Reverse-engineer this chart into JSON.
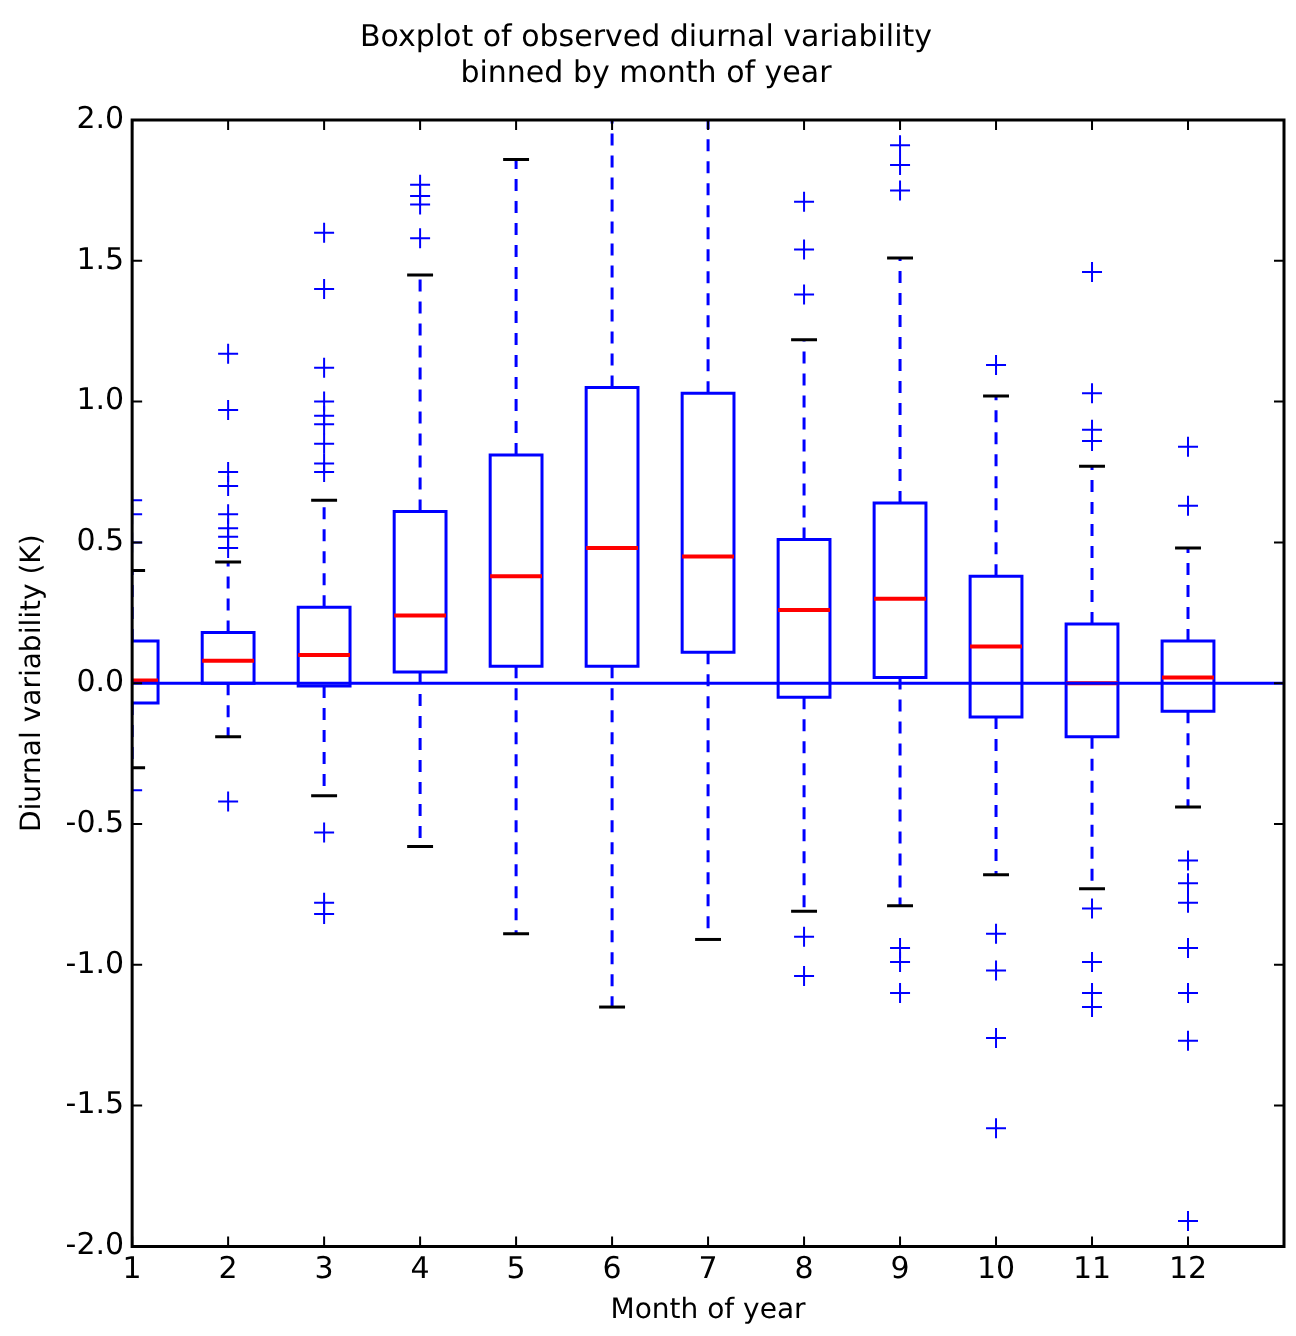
{
  "chart_data": {
    "type": "box",
    "title": "Boxplot of observed diurnal variability binned by month of year",
    "xlabel": "Month of year",
    "ylabel": "Diurnal variability (K)",
    "x": [
      1,
      2,
      3,
      4,
      5,
      6,
      7,
      8,
      9,
      10,
      11,
      12
    ],
    "xlim": [
      1,
      13
    ],
    "xticks": [
      1,
      2,
      3,
      4,
      5,
      6,
      7,
      8,
      9,
      10,
      11,
      12
    ],
    "ylim": [
      -2,
      2
    ],
    "yticks": [
      {
        "value": -2,
        "label": "-2.0"
      },
      {
        "value": -1.5,
        "label": "-1.5"
      },
      {
        "value": -1,
        "label": "-1.0"
      },
      {
        "value": -0.5,
        "label": "-0.5"
      },
      {
        "value": 0,
        "label": "0.0"
      },
      {
        "value": 0.5,
        "label": "0.5"
      },
      {
        "value": 1,
        "label": "1.0"
      },
      {
        "value": 1.5,
        "label": "1.5"
      },
      {
        "value": 2,
        "label": "2.0"
      }
    ],
    "grid": false,
    "legend": false,
    "marker": "cross",
    "ref_lines": [
      {
        "axis": "y",
        "value": 0,
        "color": "#0000ff"
      }
    ],
    "series": [
      {
        "color": "#0000ff",
        "boxes": [
          {
            "low": -0.3,
            "q1": -0.07,
            "median": 0.01,
            "q3": 0.15,
            "high": 0.4,
            "outliers": [
              0.5,
              0.6,
              0.65,
              -0.38
            ]
          },
          {
            "low": -0.19,
            "q1": 0.0,
            "median": 0.08,
            "q3": 0.18,
            "high": 0.43,
            "outliers": [
              0.48,
              0.52,
              0.55,
              0.6,
              0.7,
              0.75,
              0.97,
              1.17,
              -0.42
            ]
          },
          {
            "low": -0.4,
            "q1": -0.01,
            "median": 0.1,
            "q3": 0.27,
            "high": 0.65,
            "outliers": [
              0.75,
              0.78,
              0.85,
              0.92,
              0.95,
              1.0,
              1.12,
              1.4,
              1.6,
              -0.53,
              -0.78,
              -0.82
            ]
          },
          {
            "low": -0.58,
            "q1": 0.04,
            "median": 0.24,
            "q3": 0.61,
            "high": 1.45,
            "outliers": [
              1.58,
              1.7,
              1.73,
              1.77
            ]
          },
          {
            "low": -0.89,
            "q1": 0.06,
            "median": 0.38,
            "q3": 0.81,
            "high": 1.86
          },
          {
            "low": -1.15,
            "q1": 0.06,
            "median": 0.48,
            "q3": 1.05,
            "high": null
          },
          {
            "low": -0.91,
            "q1": 0.11,
            "median": 0.45,
            "q3": 1.03,
            "high": null
          },
          {
            "low": -0.81,
            "q1": -0.05,
            "median": 0.26,
            "q3": 0.51,
            "high": 1.22,
            "outliers": [
              1.38,
              1.54,
              1.71,
              -0.9,
              -1.04
            ]
          },
          {
            "low": -0.79,
            "q1": 0.02,
            "median": 0.3,
            "q3": 0.64,
            "high": 1.51,
            "outliers": [
              1.75,
              1.84,
              1.91,
              -0.94,
              -0.99,
              -1.1
            ]
          },
          {
            "low": -0.68,
            "q1": -0.12,
            "median": 0.13,
            "q3": 0.38,
            "high": 1.02,
            "outliers": [
              1.13,
              -0.89,
              -1.02,
              -1.26,
              -1.58
            ]
          },
          {
            "low": -0.73,
            "q1": -0.19,
            "median": 0.0,
            "q3": 0.21,
            "high": 0.77,
            "outliers": [
              0.86,
              0.9,
              1.03,
              1.46,
              -0.8,
              -0.99,
              -1.1,
              -1.15
            ]
          },
          {
            "low": -0.44,
            "q1": -0.1,
            "median": 0.02,
            "q3": 0.15,
            "high": 0.48,
            "outliers": [
              0.63,
              0.84,
              -0.63,
              -0.71,
              -0.78,
              -0.94,
              -1.1,
              -1.27,
              -1.91
            ]
          }
        ]
      }
    ]
  }
}
